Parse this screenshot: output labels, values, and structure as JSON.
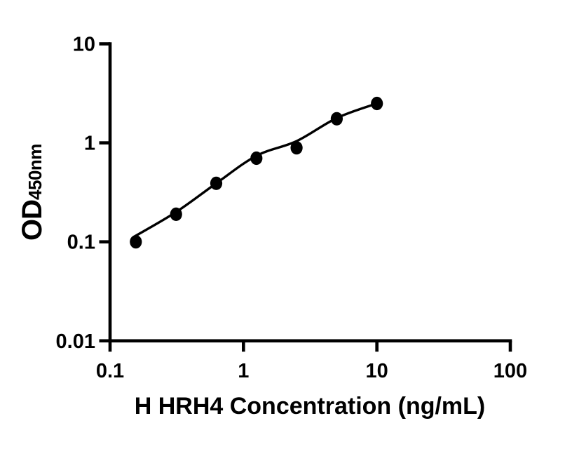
{
  "figure": {
    "background": "#ffffff",
    "ink": "#000000"
  },
  "chart_data": {
    "type": "scatter",
    "title": "",
    "xlabel": "H HRH4 Concentration (ng/mL)",
    "ylabel": "OD450nm",
    "ylabel_main": "OD",
    "ylabel_sub": "450nm",
    "x_scale": "log",
    "y_scale": "log",
    "xlim": [
      0.1,
      100
    ],
    "ylim": [
      0.01,
      10
    ],
    "x_ticks": [
      0.1,
      1,
      10,
      100
    ],
    "x_tick_labels": [
      "0.1",
      "1",
      "10",
      "100"
    ],
    "y_ticks": [
      0.01,
      0.1,
      1,
      10
    ],
    "y_tick_labels": [
      "0.01",
      "0.1",
      "1",
      "10"
    ],
    "grid": false,
    "legend": false,
    "series": [
      {
        "name": "standards",
        "type": "scatter",
        "marker": "filled-circle",
        "color": "#000000",
        "x": [
          0.156,
          0.3125,
          0.625,
          1.25,
          2.5,
          5,
          10
        ],
        "y": [
          0.1,
          0.19,
          0.39,
          0.7,
          0.89,
          1.75,
          2.5
        ]
      },
      {
        "name": "fit-curve",
        "type": "line",
        "color": "#000000",
        "x": [
          0.152,
          0.3125,
          0.625,
          1.25,
          2.5,
          5,
          10
        ],
        "y": [
          0.113,
          0.2,
          0.39,
          0.74,
          1.04,
          1.78,
          2.5
        ]
      }
    ]
  }
}
